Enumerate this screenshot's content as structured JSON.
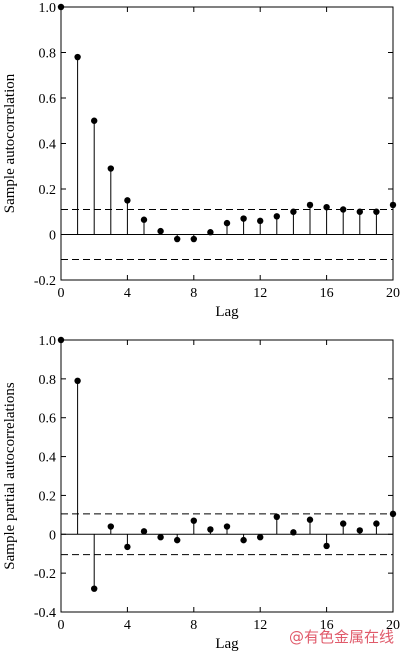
{
  "chart_data": [
    {
      "type": "stem",
      "xlabel": "Lag",
      "ylabel": "Sample autocorrelation",
      "xlim": [
        0,
        20
      ],
      "ylim": [
        -0.2,
        1.0
      ],
      "xticks": [
        0,
        4,
        8,
        12,
        16,
        20
      ],
      "yticks": [
        -0.2,
        0,
        0.2,
        0.4,
        0.6,
        0.8,
        1.0
      ],
      "ytick_labels": [
        "-0.2",
        "0",
        "0.2",
        "0.4",
        "0.6",
        "0.8",
        "1.0"
      ],
      "bounds": [
        0.11,
        -0.11
      ],
      "x": [
        0,
        1,
        2,
        3,
        4,
        5,
        6,
        7,
        8,
        9,
        10,
        11,
        12,
        13,
        14,
        15,
        16,
        17,
        18,
        19,
        20
      ],
      "values": [
        1.0,
        0.78,
        0.5,
        0.29,
        0.15,
        0.065,
        0.015,
        -0.02,
        -0.02,
        0.01,
        0.05,
        0.07,
        0.06,
        0.08,
        0.1,
        0.13,
        0.12,
        0.11,
        0.1,
        0.1,
        0.13
      ]
    },
    {
      "type": "stem",
      "xlabel": "Lag",
      "ylabel": "Sample partial autocorrelations",
      "xlim": [
        0,
        20
      ],
      "ylim": [
        -0.4,
        1.0
      ],
      "xticks": [
        0,
        4,
        8,
        12,
        16,
        20
      ],
      "yticks": [
        -0.4,
        -0.2,
        0,
        0.2,
        0.4,
        0.6,
        0.8,
        1.0
      ],
      "ytick_labels": [
        "-0.4",
        "-0.2",
        "0",
        "0.2",
        "0.4",
        "0.6",
        "0.8",
        "1.0"
      ],
      "bounds": [
        0.105,
        -0.105
      ],
      "x": [
        0,
        1,
        2,
        3,
        4,
        5,
        6,
        7,
        8,
        9,
        10,
        11,
        12,
        13,
        14,
        15,
        16,
        17,
        18,
        19,
        20
      ],
      "values": [
        1.0,
        0.79,
        -0.28,
        0.04,
        -0.065,
        0.015,
        -0.015,
        -0.03,
        0.07,
        0.025,
        0.04,
        -0.03,
        -0.015,
        0.09,
        0.01,
        0.075,
        -0.06,
        0.055,
        0.02,
        0.055,
        0.105
      ]
    }
  ],
  "watermark": "@有色金属在线"
}
